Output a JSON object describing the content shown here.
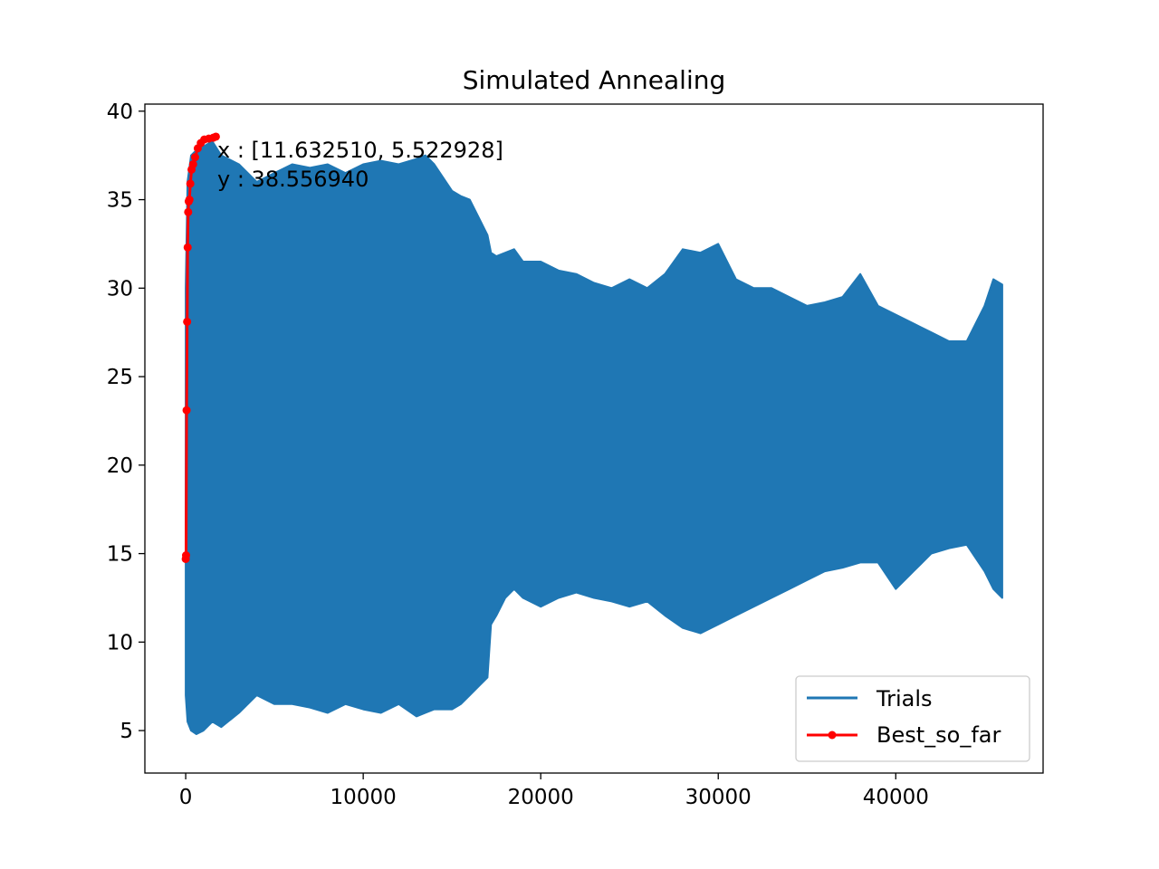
{
  "chart_data": {
    "type": "line",
    "title": "Simulated Annealing",
    "xlabel": "",
    "ylabel": "",
    "xlim": [
      -2300,
      48300
    ],
    "ylim": [
      2.6,
      40.4
    ],
    "xticks": [
      0,
      10000,
      20000,
      30000,
      40000
    ],
    "xtick_labels": [
      "0",
      "10000",
      "20000",
      "30000",
      "40000"
    ],
    "yticks": [
      5,
      10,
      15,
      20,
      25,
      30,
      35,
      40
    ],
    "ytick_labels": [
      "5",
      "10",
      "15",
      "20",
      "25",
      "30",
      "35",
      "40"
    ],
    "grid": false,
    "legend_position": "bottom-right",
    "annotation": {
      "line1": "x : [11.632510, 5.522928]",
      "line2": "y : 38.556940",
      "x": 1700,
      "y": 38.56
    },
    "series": [
      {
        "name": "Trials",
        "color": "#1f77b4",
        "style": "line",
        "band": {
          "x": [
            0,
            100,
            300,
            600,
            1000,
            1500,
            2000,
            3000,
            4000,
            5000,
            6000,
            7000,
            8000,
            9000,
            10000,
            11000,
            12000,
            13000,
            13500,
            14000,
            15000,
            15500,
            16000,
            16500,
            17000,
            17200,
            17500,
            18000,
            18500,
            19000,
            20000,
            21000,
            22000,
            23000,
            24000,
            25000,
            26000,
            27000,
            28000,
            29000,
            30000,
            31000,
            32000,
            33000,
            34000,
            35000,
            36000,
            37000,
            38000,
            39000,
            40000,
            41000,
            42000,
            43000,
            44000,
            45000,
            45500,
            46000
          ],
          "upper": [
            30,
            36,
            37.5,
            37.8,
            38,
            38.3,
            37.5,
            37,
            36,
            36.5,
            37,
            36.8,
            37,
            36.5,
            37,
            37.2,
            37,
            37.3,
            37.5,
            37,
            35.5,
            35.2,
            35,
            34,
            33,
            32,
            31.8,
            32,
            32.2,
            31.5,
            31.5,
            31,
            30.8,
            30.3,
            30,
            30.5,
            30,
            30.8,
            32.2,
            32,
            32.5,
            30.5,
            30,
            30,
            29.5,
            29,
            29.2,
            29.5,
            30.8,
            29,
            28.5,
            28,
            27.5,
            27,
            27,
            29,
            30.5,
            30.2
          ],
          "lower": [
            7,
            5.5,
            5,
            4.8,
            5,
            5.5,
            5.2,
            6,
            7,
            6.5,
            6.5,
            6.3,
            6,
            6.5,
            6.2,
            6,
            6.5,
            5.8,
            6,
            6.2,
            6.2,
            6.5,
            7,
            7.5,
            8,
            11,
            11.5,
            12.5,
            13,
            12.5,
            12,
            12.5,
            12.8,
            12.5,
            12.3,
            12,
            12.3,
            11.5,
            10.8,
            10.5,
            11,
            11.5,
            12,
            12.5,
            13,
            13.5,
            14,
            14.2,
            14.5,
            14.5,
            13,
            14,
            15,
            15.3,
            15.5,
            14,
            13,
            12.5
          ]
        }
      },
      {
        "name": "Best_so_far",
        "color": "#ff0000",
        "style": "line-marker",
        "x": [
          0,
          20,
          50,
          80,
          110,
          140,
          170,
          210,
          260,
          330,
          420,
          530,
          680,
          850,
          1050,
          1300,
          1550,
          1700
        ],
        "y": [
          14.7,
          14.9,
          23.1,
          28.1,
          32.3,
          34.3,
          34.9,
          35.0,
          35.9,
          36.7,
          37.0,
          37.4,
          37.9,
          38.2,
          38.4,
          38.45,
          38.5,
          38.56
        ]
      }
    ]
  }
}
